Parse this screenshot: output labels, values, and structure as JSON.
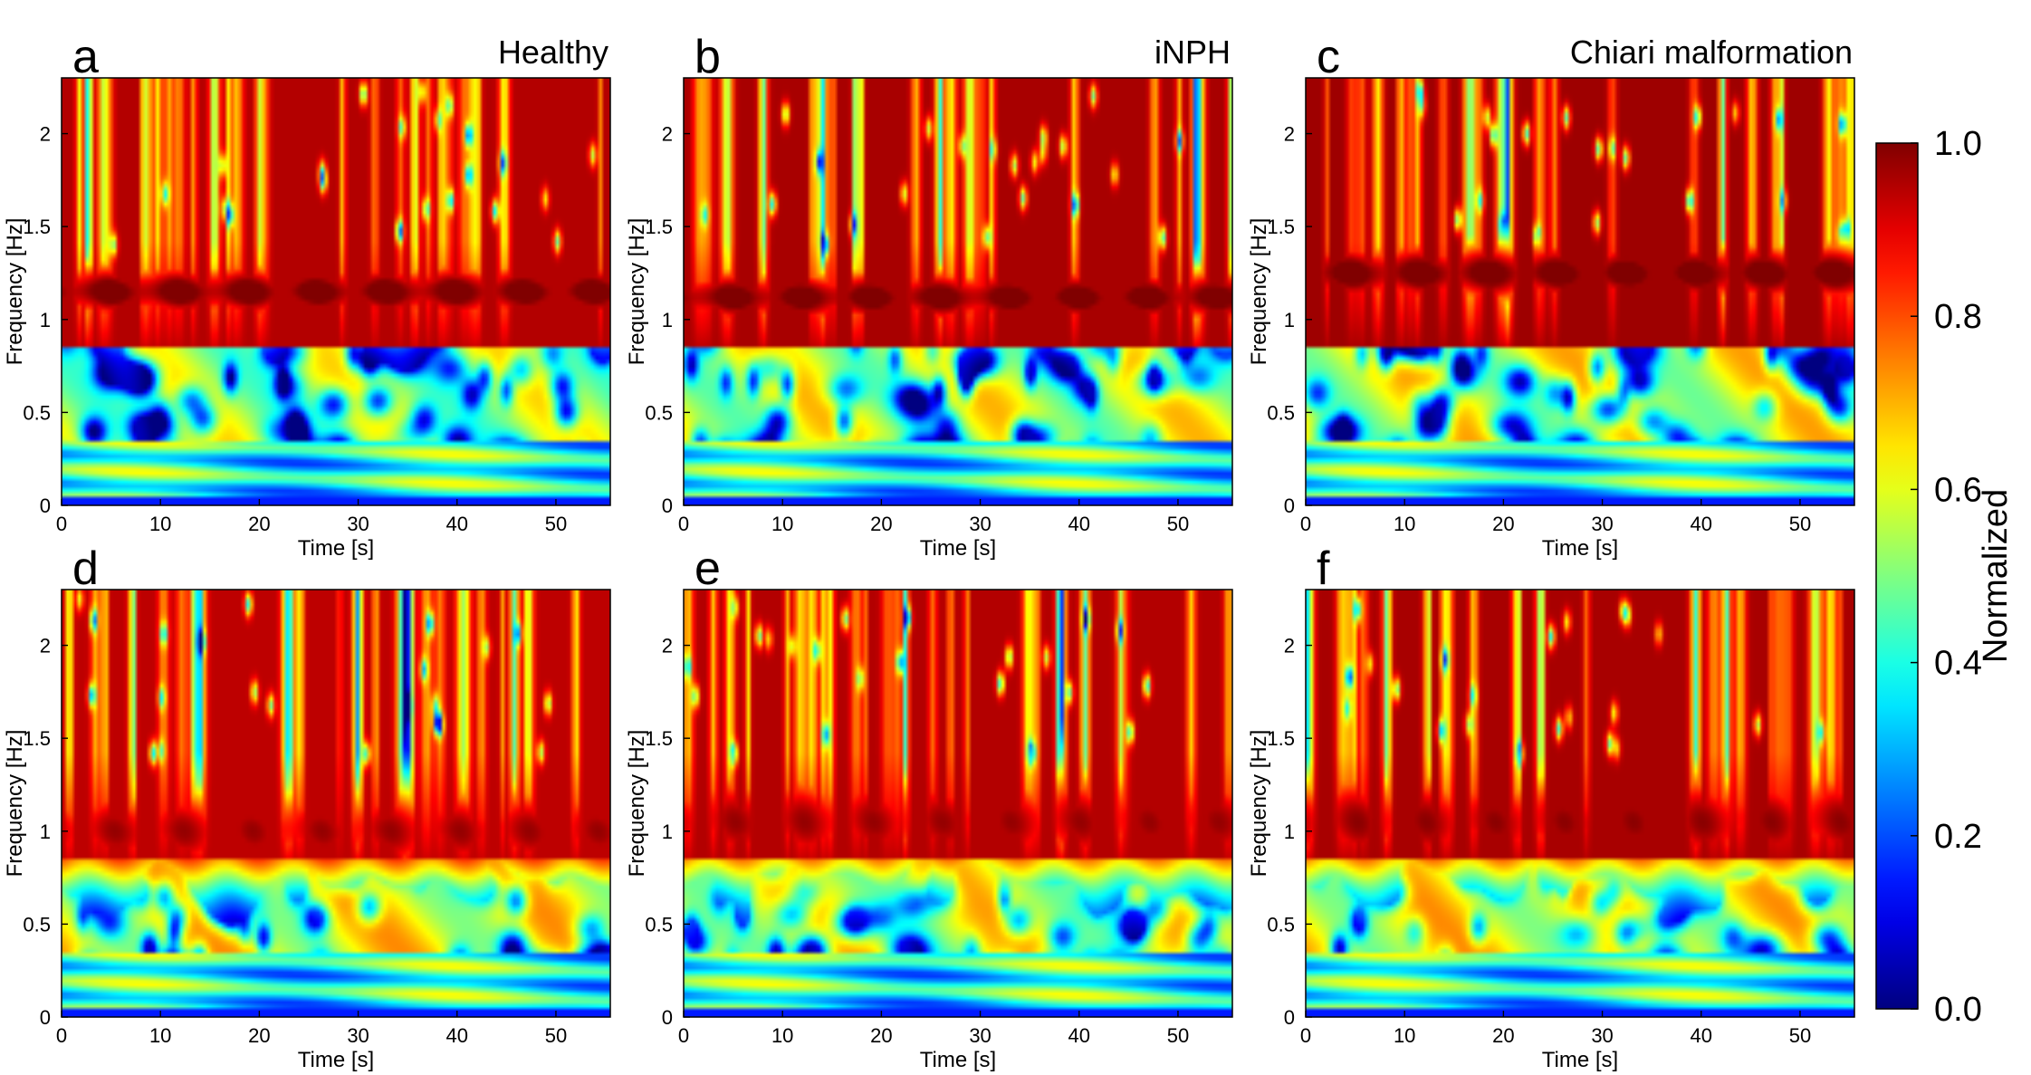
{
  "figure": {
    "colorbar": {
      "label": "Normalized",
      "ticks": [
        "0.0",
        "0.2",
        "0.4",
        "0.6",
        "0.8",
        "1.0"
      ],
      "tick_values": [
        0.0,
        0.2,
        0.4,
        0.6,
        0.8,
        1.0
      ],
      "colormap": "jet",
      "range": [
        0.0,
        1.0
      ]
    }
  },
  "chart_data": [
    {
      "type": "heatmap",
      "panel": "a",
      "title": "Healthy",
      "xlabel": "Time [s]",
      "ylabel": "Frequency [Hz]",
      "xlim": [
        0,
        55.5
      ],
      "ylim": [
        0,
        2.3
      ],
      "xticks": [
        "0",
        "10",
        "20",
        "30",
        "40",
        "50"
      ],
      "xtick_values": [
        0,
        10,
        20,
        30,
        40,
        50
      ],
      "yticks": [
        "0",
        "0.5",
        "1",
        "1.5",
        "2"
      ],
      "ytick_values": [
        0,
        0.5,
        1,
        1.5,
        2
      ],
      "band": {
        "center_hz": 1.15,
        "width_hz": 0.28,
        "peak": 1.0
      },
      "texture": {
        "low_freq_level": 0.55,
        "high_freq_level": 0.85,
        "stripe_density": 0.9,
        "seed": 11
      }
    },
    {
      "type": "heatmap",
      "panel": "b",
      "title": "iNPH",
      "xlabel": "Time [s]",
      "ylabel": "Frequency [Hz]",
      "xlim": [
        0,
        55.5
      ],
      "ylim": [
        0,
        2.3
      ],
      "xticks": [
        "0",
        "10",
        "20",
        "30",
        "40",
        "50"
      ],
      "xtick_values": [
        0,
        10,
        20,
        30,
        40,
        50
      ],
      "yticks": [
        "0",
        "0.5",
        "1",
        "1.5",
        "2"
      ],
      "ytick_values": [
        0,
        0.5,
        1,
        1.5,
        2
      ],
      "band": {
        "center_hz": 1.12,
        "width_hz": 0.27,
        "peak": 1.0
      },
      "texture": {
        "low_freq_level": 0.58,
        "high_freq_level": 0.86,
        "stripe_density": 0.95,
        "seed": 23
      }
    },
    {
      "type": "heatmap",
      "panel": "c",
      "title": "Chiari malformation",
      "xlabel": "Time [s]",
      "ylabel": "Frequency [Hz]",
      "xlim": [
        0,
        55.5
      ],
      "ylim": [
        0,
        2.3
      ],
      "xticks": [
        "0",
        "10",
        "20",
        "30",
        "40",
        "50"
      ],
      "xtick_values": [
        0,
        10,
        20,
        30,
        40,
        50
      ],
      "yticks": [
        "0",
        "0.5",
        "1",
        "1.5",
        "2"
      ],
      "ytick_values": [
        0,
        0.5,
        1,
        1.5,
        2
      ],
      "band": {
        "center_hz": 1.25,
        "width_hz": 0.3,
        "peak": 1.0
      },
      "texture": {
        "low_freq_level": 0.6,
        "high_freq_level": 0.87,
        "stripe_density": 0.9,
        "seed": 37
      }
    },
    {
      "type": "heatmap",
      "panel": "d",
      "title": "",
      "xlabel": "Time [s]",
      "ylabel": "Frequency [Hz]",
      "xlim": [
        0,
        55.5
      ],
      "ylim": [
        0,
        2.3
      ],
      "xticks": [
        "0",
        "10",
        "20",
        "30",
        "40",
        "50"
      ],
      "xtick_values": [
        0,
        10,
        20,
        30,
        40,
        50
      ],
      "yticks": [
        "0",
        "0.5",
        "1",
        "1.5",
        "2"
      ],
      "ytick_values": [
        0,
        0.5,
        1,
        1.5,
        2
      ],
      "band": {
        "center_hz": 1.0,
        "width_hz": 0.45,
        "peak": 0.92
      },
      "texture": {
        "low_freq_level": 0.62,
        "high_freq_level": 0.84,
        "stripe_density": 1.0,
        "seed": 41
      }
    },
    {
      "type": "heatmap",
      "panel": "e",
      "title": "",
      "xlabel": "Time [s]",
      "ylabel": "Frequency [Hz]",
      "xlim": [
        0,
        55.5
      ],
      "ylim": [
        0,
        2.3
      ],
      "xticks": [
        "0",
        "10",
        "20",
        "30",
        "40",
        "50"
      ],
      "xtick_values": [
        0,
        10,
        20,
        30,
        40,
        50
      ],
      "yticks": [
        "0",
        "0.5",
        "1",
        "1.5",
        "2"
      ],
      "ytick_values": [
        0,
        0.5,
        1,
        1.5,
        2
      ],
      "band": {
        "center_hz": 1.05,
        "width_hz": 0.5,
        "peak": 0.92
      },
      "texture": {
        "low_freq_level": 0.6,
        "high_freq_level": 0.85,
        "stripe_density": 1.0,
        "seed": 53
      }
    },
    {
      "type": "heatmap",
      "panel": "f",
      "title": "",
      "xlabel": "Time [s]",
      "ylabel": "Frequency [Hz]",
      "xlim": [
        0,
        55.5
      ],
      "ylim": [
        0,
        2.3
      ],
      "xticks": [
        "0",
        "10",
        "20",
        "30",
        "40",
        "50"
      ],
      "xtick_values": [
        0,
        10,
        20,
        30,
        40,
        50
      ],
      "yticks": [
        "0",
        "0.5",
        "1",
        "1.5",
        "2"
      ],
      "ytick_values": [
        0,
        0.5,
        1,
        1.5,
        2
      ],
      "band": {
        "center_hz": 1.05,
        "width_hz": 0.5,
        "peak": 0.93
      },
      "texture": {
        "low_freq_level": 0.62,
        "high_freq_level": 0.86,
        "stripe_density": 1.0,
        "seed": 67
      }
    }
  ]
}
